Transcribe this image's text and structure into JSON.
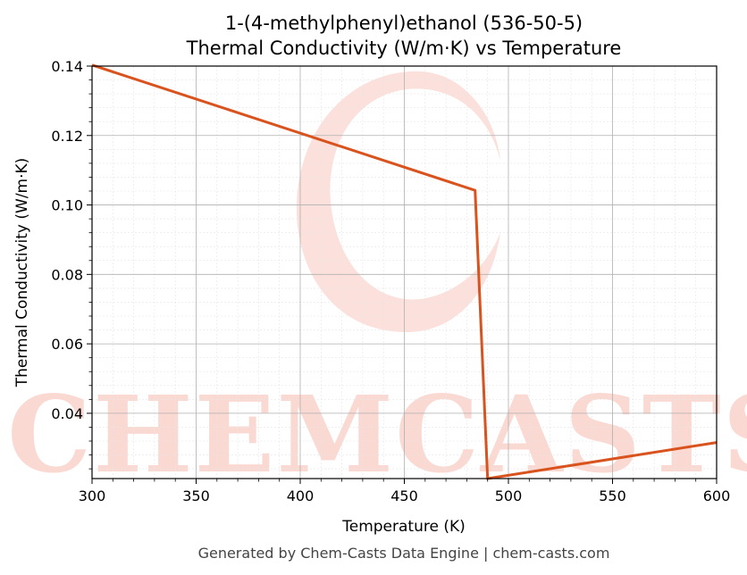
{
  "chart_data": {
    "type": "line",
    "title": "1-(4-methylphenyl)ethanol (536-50-5)",
    "subtitle": "Thermal Conductivity (W/m·K) vs Temperature",
    "xlabel": "Temperature (K)",
    "ylabel": "Thermal Conductivity (W/m·K)",
    "xlim": [
      300,
      600
    ],
    "ylim": [
      0.0212,
      0.14
    ],
    "xticks": [
      300,
      350,
      400,
      450,
      500,
      550,
      600
    ],
    "yticks": [
      0.04,
      0.06,
      0.08,
      0.1,
      0.12,
      0.14
    ],
    "xtick_labels": [
      "300",
      "350",
      "400",
      "450",
      "500",
      "550",
      "600"
    ],
    "ytick_labels": [
      "0.04",
      "0.06",
      "0.08",
      "0.10",
      "0.12",
      "0.14"
    ],
    "grid": true,
    "series": [
      {
        "color": "#d9531e",
        "x": [
          300,
          484,
          490,
          600
        ],
        "y": [
          0.1403,
          0.1042,
          0.0212,
          0.0316
        ]
      }
    ]
  },
  "watermark": {
    "text": "CHEMCASTS",
    "color": "#fbd3cc"
  },
  "footer": "Generated by Chem-Casts Data Engine | chem-casts.com"
}
